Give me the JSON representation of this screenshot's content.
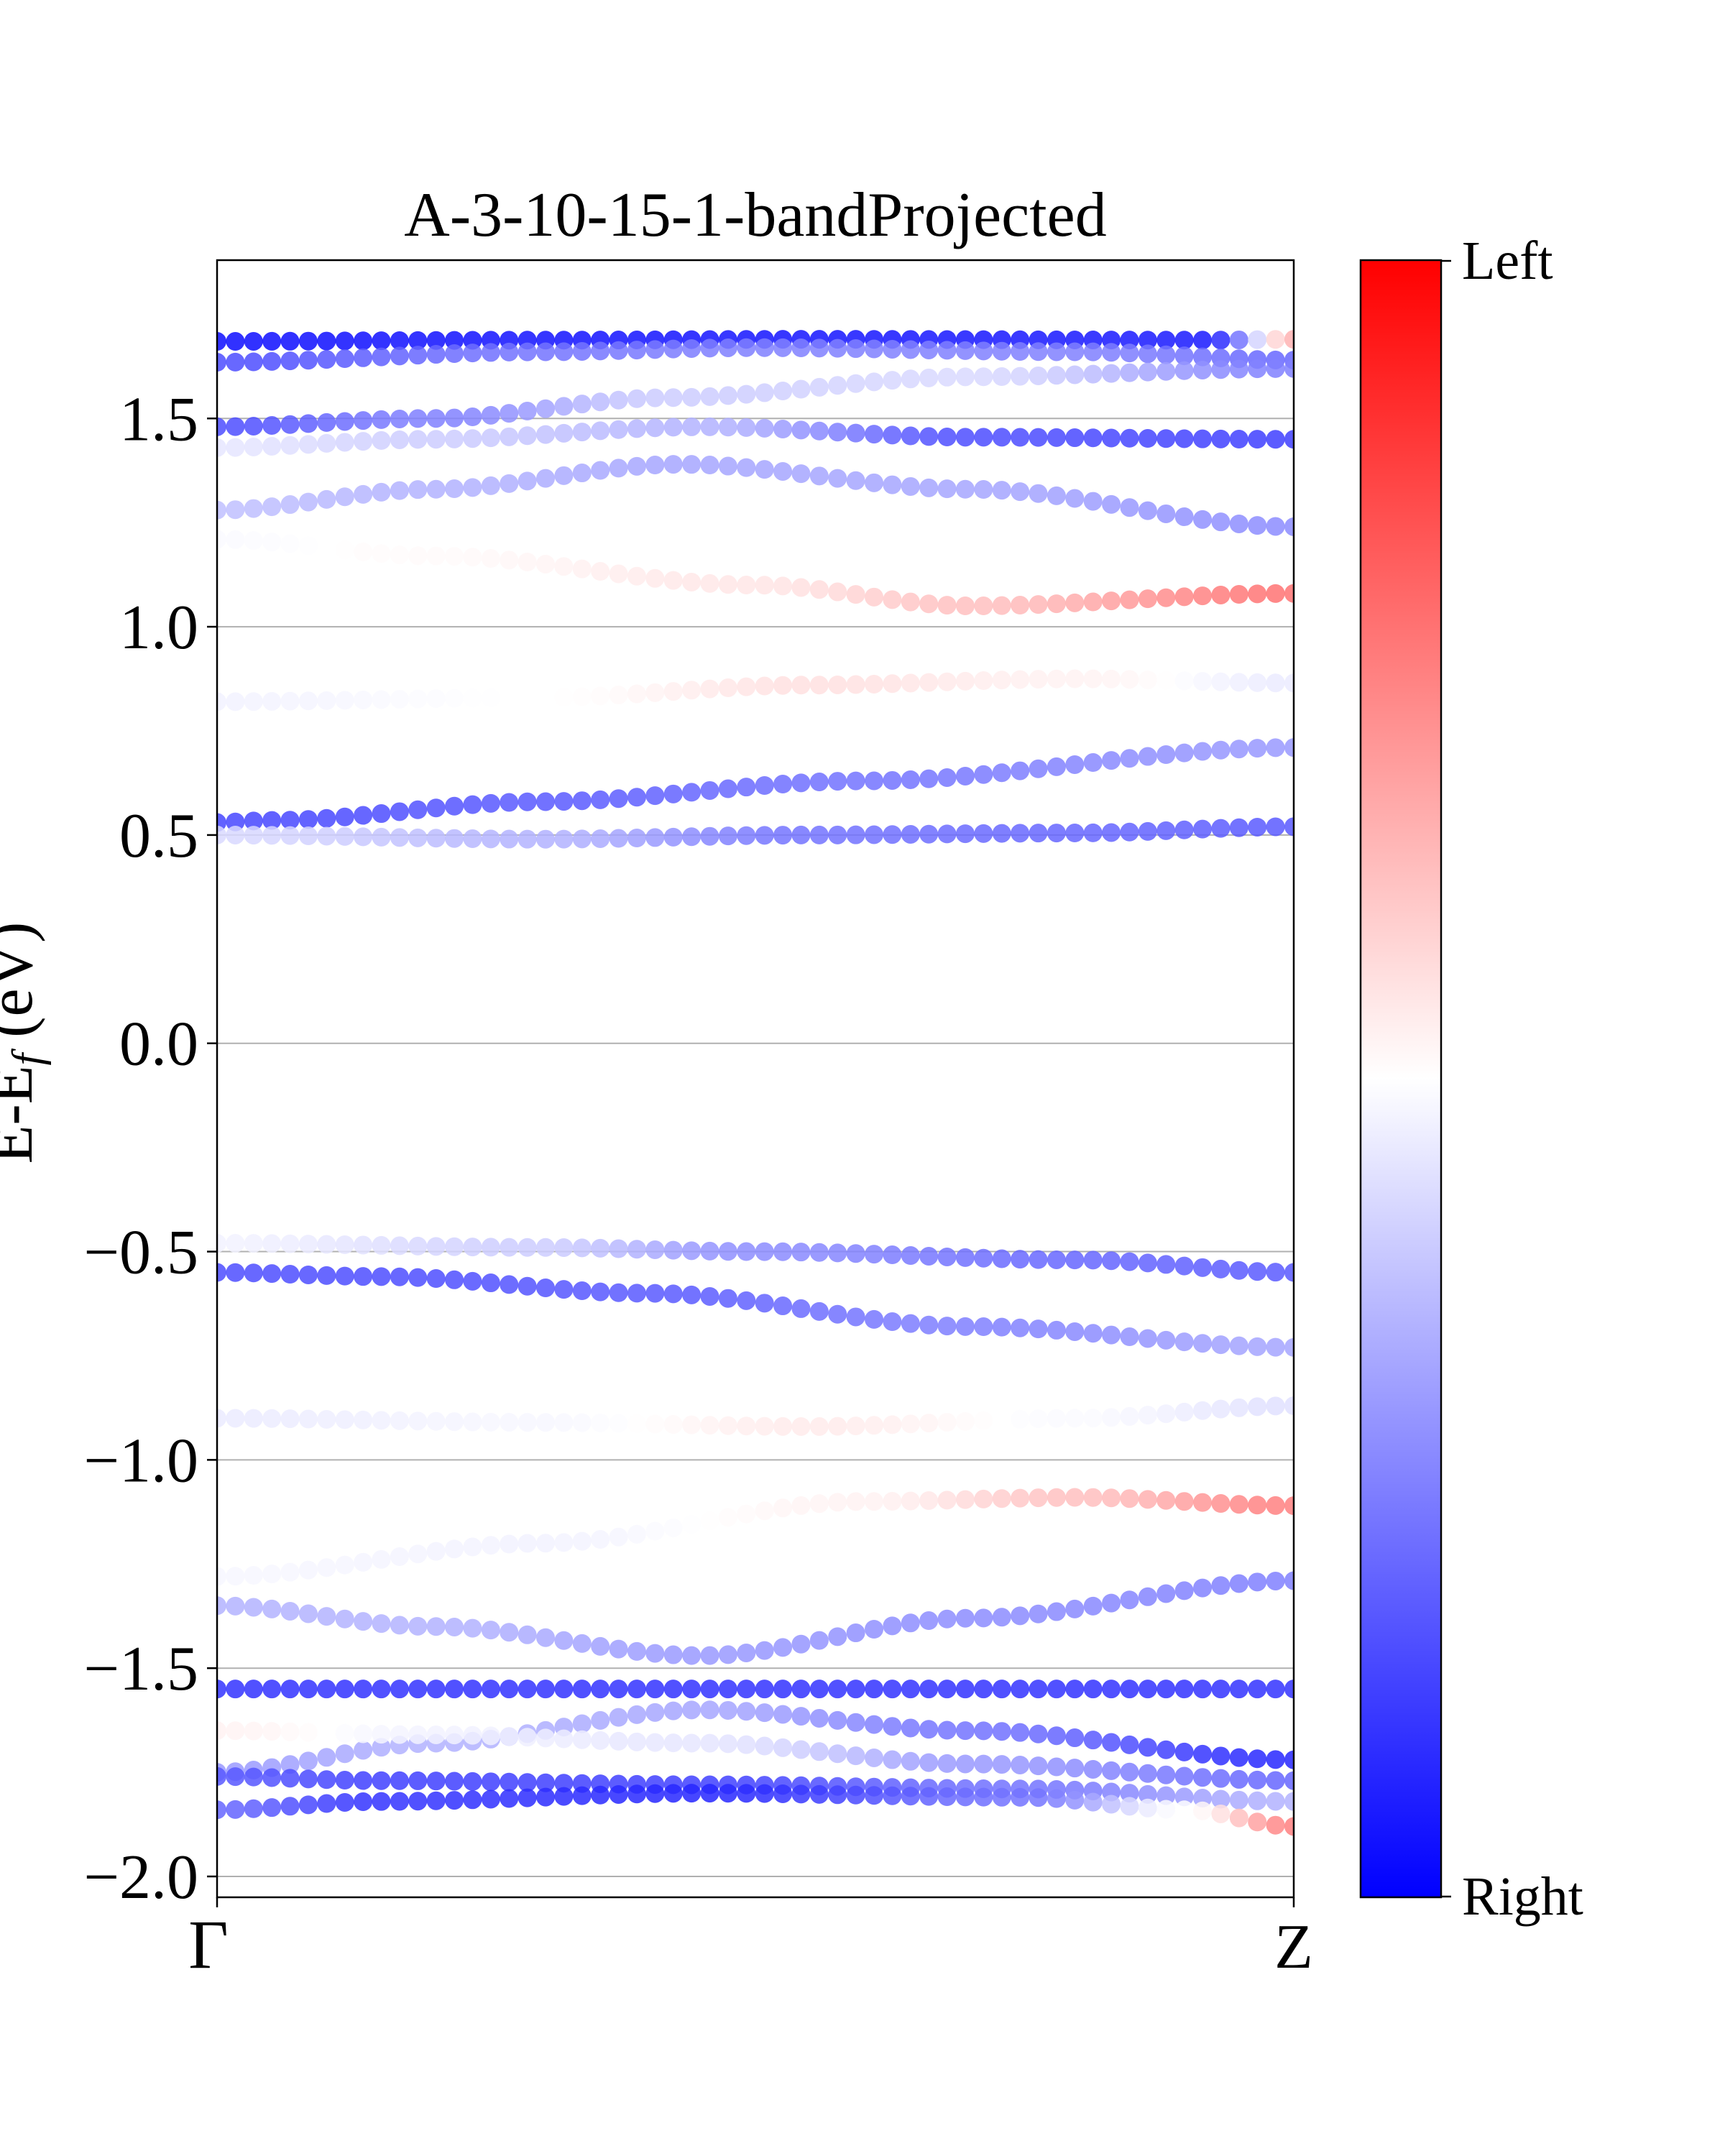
{
  "chart_data": {
    "type": "scatter",
    "title": "A-3-10-15-1-bandProjected",
    "ylabel": "E-Eᶠ (eV)",
    "ylabel_main": "E-E",
    "ylabel_sub": "f",
    "ylabel_unit": " (eV)",
    "xlabel": "",
    "x_tick_labels": [
      "Γ",
      "Z"
    ],
    "x": {
      "start": 0,
      "end": 1
    },
    "ylim": [
      -2.05,
      1.88
    ],
    "yticks": [
      -2.0,
      -1.5,
      -1.0,
      -0.5,
      0.0,
      0.5,
      1.0,
      1.5
    ],
    "ytick_labels": [
      "−2.0",
      "−1.5",
      "−1.0",
      "−0.5",
      "0.0",
      "0.5",
      "1.0",
      "1.5"
    ],
    "grid": true,
    "colorbar": {
      "colormap": "bwr",
      "top_label": "Left",
      "bottom_label": "Right",
      "top_color": "#ff0000",
      "mid_color": "#ffffff",
      "bottom_color": "#0000ff"
    },
    "points_per_band": 60,
    "band_note": "k runs Gamma (0) to Z (1); weight -1 = Right (blue), +1 = Left (red)",
    "bands": [
      {
        "k": [
          0,
          0.3,
          0.55,
          0.92,
          1
        ],
        "energy": [
          1.685,
          1.688,
          1.69,
          1.688,
          1.69
        ],
        "weight": [
          -0.95,
          -0.93,
          -0.92,
          -0.9,
          0.3
        ]
      },
      {
        "k": [
          0,
          0.3,
          0.5,
          0.8,
          1
        ],
        "energy": [
          1.635,
          1.66,
          1.67,
          1.66,
          1.64
        ],
        "weight": [
          -0.7,
          -0.55,
          -0.5,
          -0.5,
          -0.6
        ]
      },
      {
        "k": [
          0,
          0.2,
          0.42,
          0.7,
          1
        ],
        "energy": [
          1.48,
          1.5,
          1.55,
          1.6,
          1.62
        ],
        "weight": [
          -0.7,
          -0.5,
          -0.2,
          -0.15,
          -0.5
        ]
      },
      {
        "k": [
          0,
          0.2,
          0.45,
          0.7,
          1
        ],
        "energy": [
          1.43,
          1.45,
          1.48,
          1.455,
          1.45
        ],
        "weight": [
          -0.1,
          -0.2,
          -0.3,
          -0.7,
          -0.75
        ]
      },
      {
        "k": [
          0,
          0.2,
          0.43,
          0.7,
          1
        ],
        "energy": [
          1.28,
          1.33,
          1.39,
          1.33,
          1.24
        ],
        "weight": [
          -0.25,
          -0.3,
          -0.35,
          -0.35,
          -0.45
        ]
      },
      {
        "k": [
          0,
          0.2,
          0.5,
          0.7,
          1
        ],
        "energy": [
          1.21,
          1.17,
          1.1,
          1.05,
          1.08
        ],
        "weight": [
          -0.02,
          0.02,
          0.1,
          0.25,
          0.55
        ]
      },
      {
        "k": [
          0,
          0.3,
          0.55,
          0.8,
          1
        ],
        "energy": [
          0.82,
          0.83,
          0.86,
          0.875,
          0.865
        ],
        "weight": [
          -0.05,
          0.0,
          0.12,
          0.05,
          -0.08
        ]
      },
      {
        "k": [
          0,
          0.05,
          0.3,
          0.6,
          1
        ],
        "energy": [
          0.53,
          0.535,
          0.58,
          0.63,
          0.71
        ],
        "weight": [
          -0.72,
          -0.72,
          -0.65,
          -0.55,
          -0.4
        ]
      },
      {
        "k": [
          0,
          0.3,
          0.55,
          0.8,
          1
        ],
        "energy": [
          0.5,
          0.49,
          0.5,
          0.505,
          0.52
        ],
        "weight": [
          -0.15,
          -0.3,
          -0.55,
          -0.6,
          -0.65
        ]
      },
      {
        "k": [
          0,
          0.3,
          0.5,
          0.8,
          1
        ],
        "energy": [
          -0.48,
          -0.49,
          -0.5,
          -0.52,
          -0.55
        ],
        "weight": [
          -0.05,
          -0.2,
          -0.45,
          -0.6,
          -0.65
        ]
      },
      {
        "k": [
          0,
          0.15,
          0.4,
          0.7,
          1
        ],
        "energy": [
          -0.55,
          -0.56,
          -0.6,
          -0.68,
          -0.73
        ],
        "weight": [
          -0.7,
          -0.7,
          -0.65,
          -0.5,
          -0.35
        ]
      },
      {
        "k": [
          0,
          0.3,
          0.55,
          0.8,
          1
        ],
        "energy": [
          -0.9,
          -0.91,
          -0.92,
          -0.9,
          -0.87
        ],
        "weight": [
          -0.08,
          -0.03,
          0.08,
          -0.02,
          -0.12
        ]
      },
      {
        "k": [
          0,
          0.3,
          0.6,
          0.8,
          1
        ],
        "energy": [
          -1.28,
          -1.2,
          -1.1,
          -1.09,
          -1.11
        ],
        "weight": [
          -0.03,
          -0.05,
          0.05,
          0.25,
          0.5
        ]
      },
      {
        "k": [
          0,
          0.2,
          0.45,
          0.7,
          1
        ],
        "energy": [
          -1.35,
          -1.4,
          -1.47,
          -1.38,
          -1.29
        ],
        "weight": [
          -0.3,
          -0.3,
          -0.4,
          -0.45,
          -0.5
        ]
      },
      {
        "k": [
          0,
          0.5,
          1
        ],
        "energy": [
          -1.55,
          -1.55,
          -1.55
        ],
        "weight": [
          -0.8,
          -0.8,
          -0.8
        ]
      },
      {
        "k": [
          0,
          0.2,
          0.45,
          0.7,
          1
        ],
        "energy": [
          -1.75,
          -1.68,
          -1.6,
          -1.65,
          -1.72
        ],
        "weight": [
          -0.4,
          -0.3,
          -0.35,
          -0.55,
          -0.85
        ]
      },
      {
        "k": [
          0,
          0.2,
          0.45,
          0.7,
          1
        ],
        "energy": [
          -1.65,
          -1.66,
          -1.68,
          -1.73,
          -1.77
        ],
        "weight": [
          0.05,
          -0.05,
          -0.1,
          -0.4,
          -0.6
        ]
      },
      {
        "k": [
          0,
          0.15,
          0.45,
          0.75,
          1
        ],
        "energy": [
          -1.76,
          -1.77,
          -1.78,
          -1.79,
          -1.82
        ],
        "weight": [
          -0.65,
          -0.75,
          -0.75,
          -0.55,
          -0.3
        ]
      },
      {
        "k": [
          0,
          0.15,
          0.45,
          0.75,
          0.9,
          1
        ],
        "energy": [
          -1.84,
          -1.82,
          -1.8,
          -1.81,
          -1.84,
          -1.88
        ],
        "weight": [
          -0.6,
          -0.8,
          -0.85,
          -0.55,
          0.0,
          0.5
        ]
      }
    ]
  }
}
